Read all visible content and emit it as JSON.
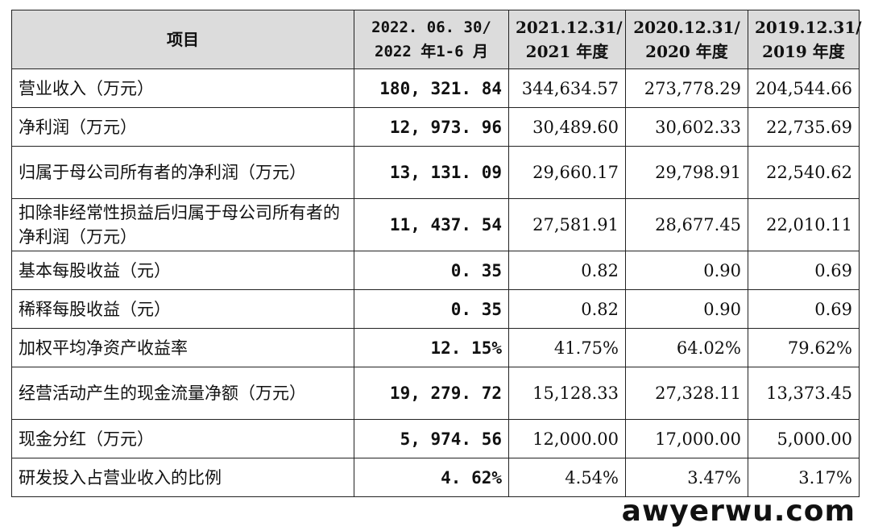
{
  "header": {
    "item": "项目",
    "col1": [
      "2022. 06. 30/",
      "2022 年1-6 月"
    ],
    "col2": [
      "2021.12.31/",
      "2021 年度"
    ],
    "col3": [
      "2020.12.31/",
      "2020 年度"
    ],
    "col4": [
      "2019.12.31/",
      "2019 年度"
    ]
  },
  "rows": [
    {
      "label": "营业收入（万元）",
      "v1": "180, 321. 84",
      "v2": "344,634.57",
      "v3": "273,778.29",
      "v4": "204,544.66"
    },
    {
      "label": "净利润（万元）",
      "v1": "12, 973. 96",
      "v2": "30,489.60",
      "v3": "30,602.33",
      "v4": "22,735.69"
    },
    {
      "label": "归属于母公司所有者的净利润（万元）",
      "v1": "13, 131. 09",
      "v2": "29,660.17",
      "v3": "29,798.91",
      "v4": "22,540.62"
    },
    {
      "label": "扣除非经常性损益后归属于母公司所有者的净利润（万元）",
      "v1": "11, 437. 54",
      "v2": "27,581.91",
      "v3": "28,677.45",
      "v4": "22,010.11"
    },
    {
      "label": "基本每股收益（元）",
      "v1": "0. 35",
      "v2": "0.82",
      "v3": "0.90",
      "v4": "0.69"
    },
    {
      "label": "稀释每股收益（元）",
      "v1": "0. 35",
      "v2": "0.82",
      "v3": "0.90",
      "v4": "0.69"
    },
    {
      "label": "加权平均净资产收益率",
      "v1": "12. 15%",
      "v2": "41.75%",
      "v3": "64.02%",
      "v4": "79.62%"
    },
    {
      "label": "经营活动产生的现金流量净额（万元）",
      "v1": "19, 279. 72",
      "v2": "15,128.33",
      "v3": "27,328.11",
      "v4": "13,373.45"
    },
    {
      "label": "现金分红（万元）",
      "v1": "5, 974. 56",
      "v2": "12,000.00",
      "v3": "17,000.00",
      "v4": "5,000.00"
    },
    {
      "label": "研发投入占营业收入的比例",
      "v1": "4. 62%",
      "v2": "4.54%",
      "v3": "3.47%",
      "v4": "3.17%"
    }
  ],
  "watermark": "awyerwu.com"
}
